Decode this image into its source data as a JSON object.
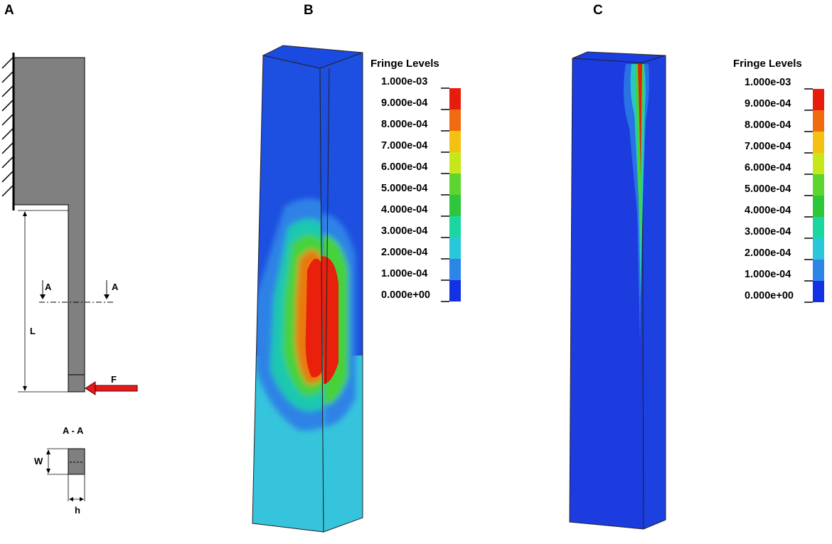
{
  "panels": {
    "a": {
      "letter": "A"
    },
    "b": {
      "letter": "B"
    },
    "c": {
      "letter": "C"
    }
  },
  "schematic": {
    "section_mark_left": "A",
    "section_mark_right": "A",
    "length_label": "L",
    "force_label": "F",
    "section_title": "A - A",
    "width_label": "W",
    "thickness_label": "h",
    "force_arrow_color": "#e41a1c"
  },
  "legend_b": {
    "title": "Fringe Levels",
    "levels": [
      "1.000e-03",
      "9.000e-04",
      "8.000e-04",
      "7.000e-04",
      "6.000e-04",
      "5.000e-04",
      "4.000e-04",
      "3.000e-04",
      "2.000e-04",
      "1.000e-04",
      "0.000e+00"
    ]
  },
  "legend_c": {
    "title": "Fringe Levels",
    "levels": [
      "1.000e-03",
      "9.000e-04",
      "8.000e-04",
      "7.000e-04",
      "6.000e-04",
      "5.000e-04",
      "4.000e-04",
      "3.000e-04",
      "2.000e-04",
      "1.000e-04",
      "0.000e+00"
    ]
  },
  "fringe_colors": [
    "#e81c0c",
    "#f06a10",
    "#f4c012",
    "#c6e81a",
    "#5cd62e",
    "#2ec63a",
    "#1cd6a0",
    "#28c8da",
    "#2c86e8",
    "#1230e4"
  ]
}
